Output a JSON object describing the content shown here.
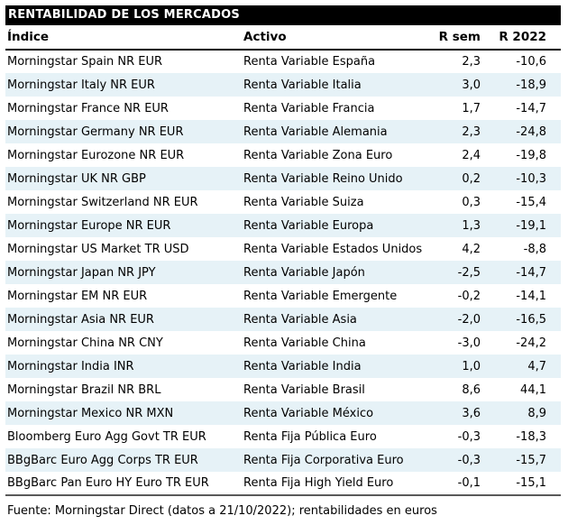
{
  "colors": {
    "zebra": "#e6f2f7",
    "titlebar_bg": "#000000",
    "titlebar_fg": "#ffffff"
  },
  "chart_data": {
    "type": "table",
    "title": "RENTABILIDAD DE LOS MERCADOS",
    "columns": [
      "Índice",
      "Activo",
      "R sem",
      "R 2022"
    ],
    "rows": [
      [
        "Morningstar Spain NR EUR",
        "Renta Variable España",
        "2,3",
        "-10,6"
      ],
      [
        "Morningstar Italy NR EUR",
        "Renta Variable Italia",
        "3,0",
        "-18,9"
      ],
      [
        "Morningstar France NR EUR",
        "Renta Variable Francia",
        "1,7",
        "-14,7"
      ],
      [
        "Morningstar Germany NR EUR",
        "Renta Variable Alemania",
        "2,3",
        "-24,8"
      ],
      [
        "Morningstar Eurozone NR EUR",
        "Renta Variable Zona Euro",
        "2,4",
        "-19,8"
      ],
      [
        "Morningstar UK NR GBP",
        "Renta Variable Reino Unido",
        "0,2",
        "-10,3"
      ],
      [
        "Morningstar Switzerland NR EUR",
        "Renta Variable Suiza",
        "0,3",
        "-15,4"
      ],
      [
        "Morningstar Europe NR EUR",
        "Renta Variable Europa",
        "1,3",
        "-19,1"
      ],
      [
        "Morningstar US Market TR USD",
        "Renta Variable Estados Unidos",
        "4,2",
        "-8,8"
      ],
      [
        "Morningstar Japan NR JPY",
        "Renta Variable Japón",
        "-2,5",
        "-14,7"
      ],
      [
        "Morningstar EM NR EUR",
        "Renta Variable Emergente",
        "-0,2",
        "-14,1"
      ],
      [
        "Morningstar Asia NR EUR",
        "Renta Variable Asia",
        "-2,0",
        "-16,5"
      ],
      [
        "Morningstar China NR CNY",
        "Renta Variable China",
        "-3,0",
        "-24,2"
      ],
      [
        "Morningstar India INR",
        "Renta Variable India",
        "1,0",
        "4,7"
      ],
      [
        "Morningstar Brazil NR BRL",
        "Renta Variable Brasil",
        "8,6",
        "44,1"
      ],
      [
        "Morningstar Mexico NR MXN",
        "Renta Variable México",
        "3,6",
        "8,9"
      ],
      [
        "Bloomberg Euro Agg Govt TR EUR",
        "Renta Fija Pública Euro",
        "-0,3",
        "-18,3"
      ],
      [
        "BBgBarc Euro Agg Corps TR EUR",
        "Renta Fija Corporativa Euro",
        "-0,3",
        "-15,7"
      ],
      [
        "BBgBarc Pan Euro HY Euro TR EUR",
        "Renta Fija High Yield Euro",
        "-0,1",
        "-15,1"
      ]
    ],
    "footnote": "Fuente: Morningstar Direct (datos a 21/10/2022); rentabilidades en euros"
  }
}
